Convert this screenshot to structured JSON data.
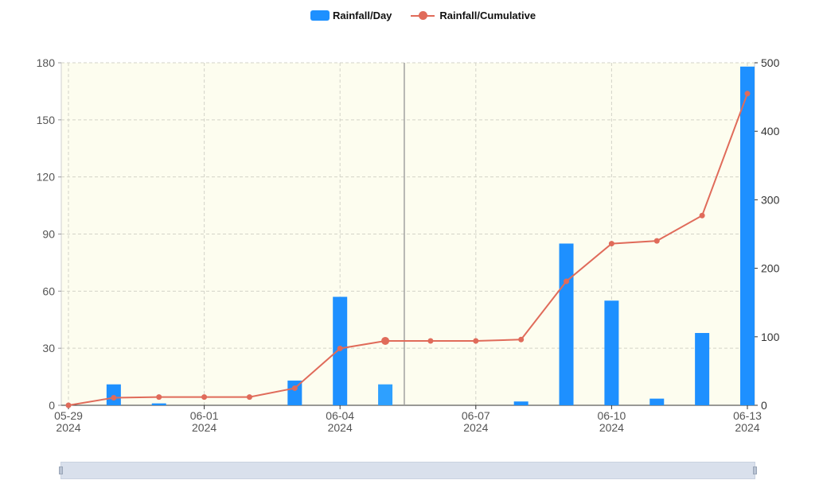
{
  "legend": {
    "bar_label": "Rainfall/Day",
    "line_label": "Rainfall/Cumulative"
  },
  "colors": {
    "bar": "#1e90ff",
    "line": "#e06b5a",
    "plot_bg": "#fdfdef",
    "grid": "#d3d3c8",
    "pointer": "#9a9a9a",
    "axis_text": "#555555"
  },
  "chart_data": {
    "type": "bar",
    "categories": [
      "05-29",
      "05-30",
      "05-31",
      "06-01",
      "06-02",
      "06-03",
      "06-04",
      "06-05",
      "06-06",
      "06-07",
      "06-08",
      "06-09",
      "06-10",
      "06-11",
      "06-12",
      "06-13"
    ],
    "x_tick_labels": [
      {
        "index": 0,
        "date": "05-29",
        "year": "2024"
      },
      {
        "index": 3,
        "date": "06-01",
        "year": "2024"
      },
      {
        "index": 6,
        "date": "06-04",
        "year": "2024"
      },
      {
        "index": 9,
        "date": "06-07",
        "year": "2024"
      },
      {
        "index": 12,
        "date": "06-10",
        "year": "2024"
      },
      {
        "index": 15,
        "date": "06-13",
        "year": "2024"
      }
    ],
    "series": [
      {
        "name": "Rainfall/Day",
        "type": "bar",
        "axis": "left",
        "values": [
          0,
          11,
          1,
          0,
          0,
          13,
          57,
          11,
          0,
          0,
          2,
          85,
          55,
          3.5,
          38,
          178
        ]
      },
      {
        "name": "Rainfall/Cumulative",
        "type": "line",
        "axis": "right",
        "values": [
          0,
          11,
          12,
          12,
          12,
          25,
          83,
          94,
          94,
          94,
          96,
          181,
          236,
          240,
          277,
          455
        ]
      }
    ],
    "y_left": {
      "min": 0,
      "max": 180,
      "ticks": [
        0,
        30,
        60,
        90,
        120,
        150,
        180
      ]
    },
    "y_right": {
      "min": 0,
      "max": 500,
      "ticks": [
        0,
        100,
        200,
        300,
        400,
        500
      ]
    },
    "highlight_index": 7,
    "grid": true,
    "legend_position": "top-center",
    "title": "",
    "xlabel": "",
    "ylabel": ""
  }
}
